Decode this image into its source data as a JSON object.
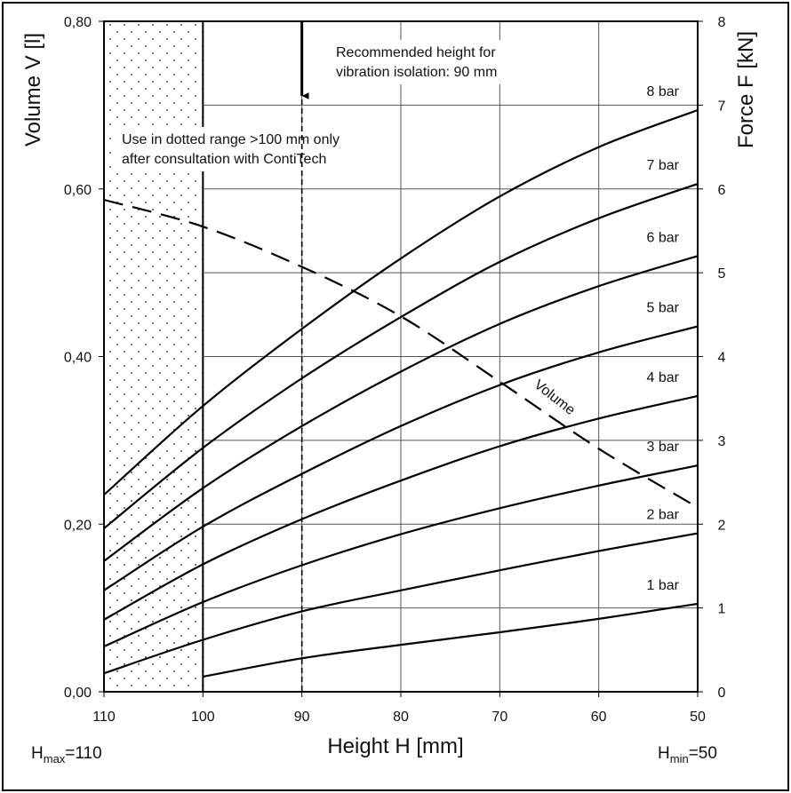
{
  "colors": {
    "line": "#000000",
    "grid": "#555555",
    "background": "#ffffff"
  },
  "annotations": {
    "dotted_note_line1": "Use in dotted range >100 mm only",
    "dotted_note_line2": "after consultation with ContiTech",
    "recommended_line1": "Recommended height for",
    "recommended_line2": "vibration isolation: 90 mm",
    "hmax_prefix": "H",
    "hmax_sub": "max",
    "hmax_value": "=110",
    "hmin_prefix": "H",
    "hmin_sub": "min",
    "hmin_value": "=50"
  },
  "chart_data": {
    "type": "line",
    "xlabel": "Height H [mm]",
    "ylabel_left": "Volume V [l]",
    "ylabel_right": "Force F [kN]",
    "xlim": [
      110,
      50
    ],
    "x_reversed": true,
    "x_ticks": [
      "110",
      "100",
      "90",
      "80",
      "70",
      "60",
      "50"
    ],
    "ylim_left": [
      0,
      0.8
    ],
    "left_ticks": [
      "0,00",
      "0,20",
      "0,40",
      "0,60",
      "0,80"
    ],
    "ylim_right": [
      0,
      8
    ],
    "right_ticks": [
      "0",
      "1",
      "2",
      "3",
      "4",
      "5",
      "6",
      "7",
      "8"
    ],
    "grid": true,
    "dotted_region_x": [
      110,
      100
    ],
    "recommended_height": 90,
    "force_series": [
      {
        "name": "1 bar",
        "x": [
          100,
          90,
          80,
          70,
          60,
          50
        ],
        "y": [
          0.18,
          0.4,
          0.56,
          0.71,
          0.87,
          1.05
        ]
      },
      {
        "name": "2 bar",
        "x": [
          110,
          100,
          90,
          80,
          70,
          60,
          50
        ],
        "y": [
          0.22,
          0.62,
          0.96,
          1.21,
          1.45,
          1.68,
          1.89
        ]
      },
      {
        "name": "3 bar",
        "x": [
          110,
          100,
          90,
          80,
          70,
          60,
          50
        ],
        "y": [
          0.54,
          1.07,
          1.51,
          1.88,
          2.19,
          2.46,
          2.7
        ]
      },
      {
        "name": "4 bar",
        "x": [
          110,
          100,
          90,
          80,
          70,
          60,
          50
        ],
        "y": [
          0.86,
          1.52,
          2.06,
          2.52,
          2.93,
          3.26,
          3.53
        ]
      },
      {
        "name": "5 bar",
        "x": [
          110,
          100,
          90,
          80,
          70,
          60,
          50
        ],
        "y": [
          1.21,
          1.97,
          2.6,
          3.17,
          3.66,
          4.05,
          4.36
        ]
      },
      {
        "name": "6 bar",
        "x": [
          110,
          100,
          90,
          80,
          70,
          60,
          50
        ],
        "y": [
          1.56,
          2.43,
          3.17,
          3.82,
          4.39,
          4.84,
          5.2
        ]
      },
      {
        "name": "7 bar",
        "x": [
          110,
          100,
          90,
          80,
          70,
          60,
          50
        ],
        "y": [
          1.95,
          2.91,
          3.74,
          4.47,
          5.13,
          5.65,
          6.06
        ]
      },
      {
        "name": "8 bar",
        "x": [
          110,
          100,
          90,
          80,
          70,
          60,
          50
        ],
        "y": [
          2.35,
          3.41,
          4.33,
          5.17,
          5.91,
          6.5,
          6.94
        ]
      }
    ],
    "volume_series": {
      "name": "Volume",
      "x": [
        110,
        100,
        90,
        80,
        70,
        60,
        50
      ],
      "y": [
        0.587,
        0.555,
        0.507,
        0.448,
        0.37,
        0.29,
        0.22
      ]
    }
  }
}
